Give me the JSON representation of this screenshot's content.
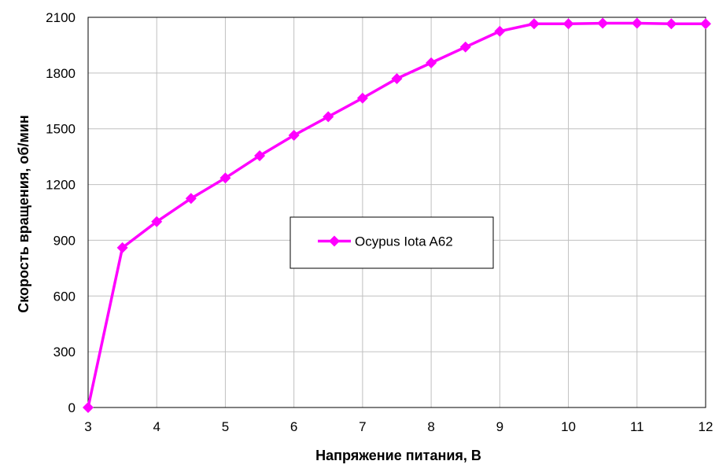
{
  "chart_data": {
    "type": "line",
    "xlabel": "Напряжение питания, В",
    "ylabel": "Скорость вращения, об/мин",
    "xlim": [
      3,
      12
    ],
    "ylim": [
      0,
      2100
    ],
    "x_ticks": [
      "3",
      "4",
      "5",
      "6",
      "7",
      "8",
      "9",
      "10",
      "11",
      "12"
    ],
    "y_ticks": [
      "0",
      "300",
      "600",
      "900",
      "1200",
      "1500",
      "1800",
      "2100"
    ],
    "grid": true,
    "legend_position": "center",
    "series": [
      {
        "name": "Ocypus Iota A62",
        "color": "#ff00ff",
        "marker": "diamond",
        "x": [
          3,
          3.5,
          4,
          4.5,
          5,
          5.5,
          6,
          6.5,
          7,
          7.5,
          8,
          8.5,
          9,
          9.5,
          10,
          10.5,
          11,
          11.5,
          12
        ],
        "y": [
          0,
          860,
          1000,
          1125,
          1235,
          1355,
          1465,
          1565,
          1665,
          1770,
          1855,
          1940,
          2025,
          2065,
          2065,
          2068,
          2068,
          2065,
          2065
        ]
      }
    ]
  }
}
